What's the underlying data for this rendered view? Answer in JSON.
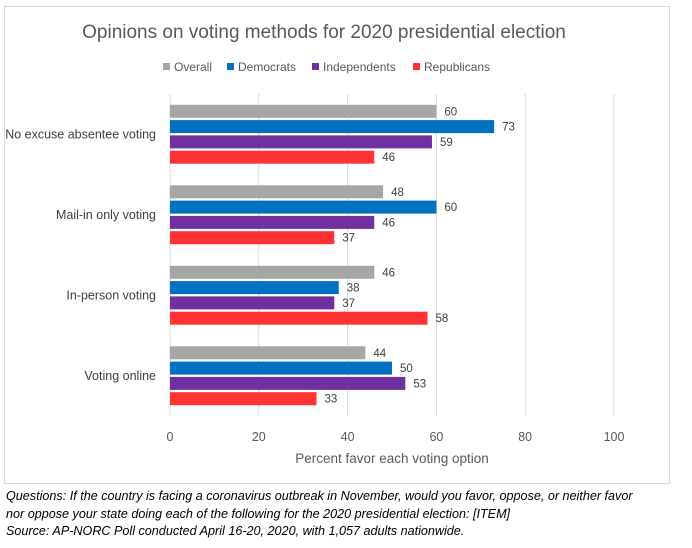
{
  "chart_data": {
    "type": "bar",
    "orientation": "horizontal",
    "title": "Opinions on voting methods for 2020 presidential election",
    "xlabel": "Percent favor each voting option",
    "ylabel": "",
    "xlim": [
      0,
      100
    ],
    "xticks": [
      0,
      20,
      40,
      60,
      80,
      100
    ],
    "grid": "vertical",
    "legend_position": "top",
    "categories": [
      "No excuse absentee voting",
      "Mail-in only voting",
      "In-person voting",
      "Voting online"
    ],
    "series": [
      {
        "name": "Overall",
        "color": "#a6a6a6",
        "values": [
          60,
          48,
          46,
          44
        ]
      },
      {
        "name": "Democrats",
        "color": "#0070c0",
        "values": [
          73,
          60,
          38,
          50
        ]
      },
      {
        "name": "Independents",
        "color": "#7030a0",
        "values": [
          59,
          46,
          37,
          53
        ]
      },
      {
        "name": "Republicans",
        "color": "#ff3333",
        "values": [
          46,
          37,
          58,
          33
        ]
      }
    ],
    "data_labels": true
  },
  "footnote": {
    "line1": "Questions: If the country is facing a coronavirus outbreak in November, would you favor, oppose, or neither favor",
    "line2": "nor oppose your state doing each of the following for the 2020 presidential election: [ITEM]",
    "line3": "Source: AP-NORC Poll conducted April 16-20, 2020, with 1,057 adults nationwide."
  }
}
